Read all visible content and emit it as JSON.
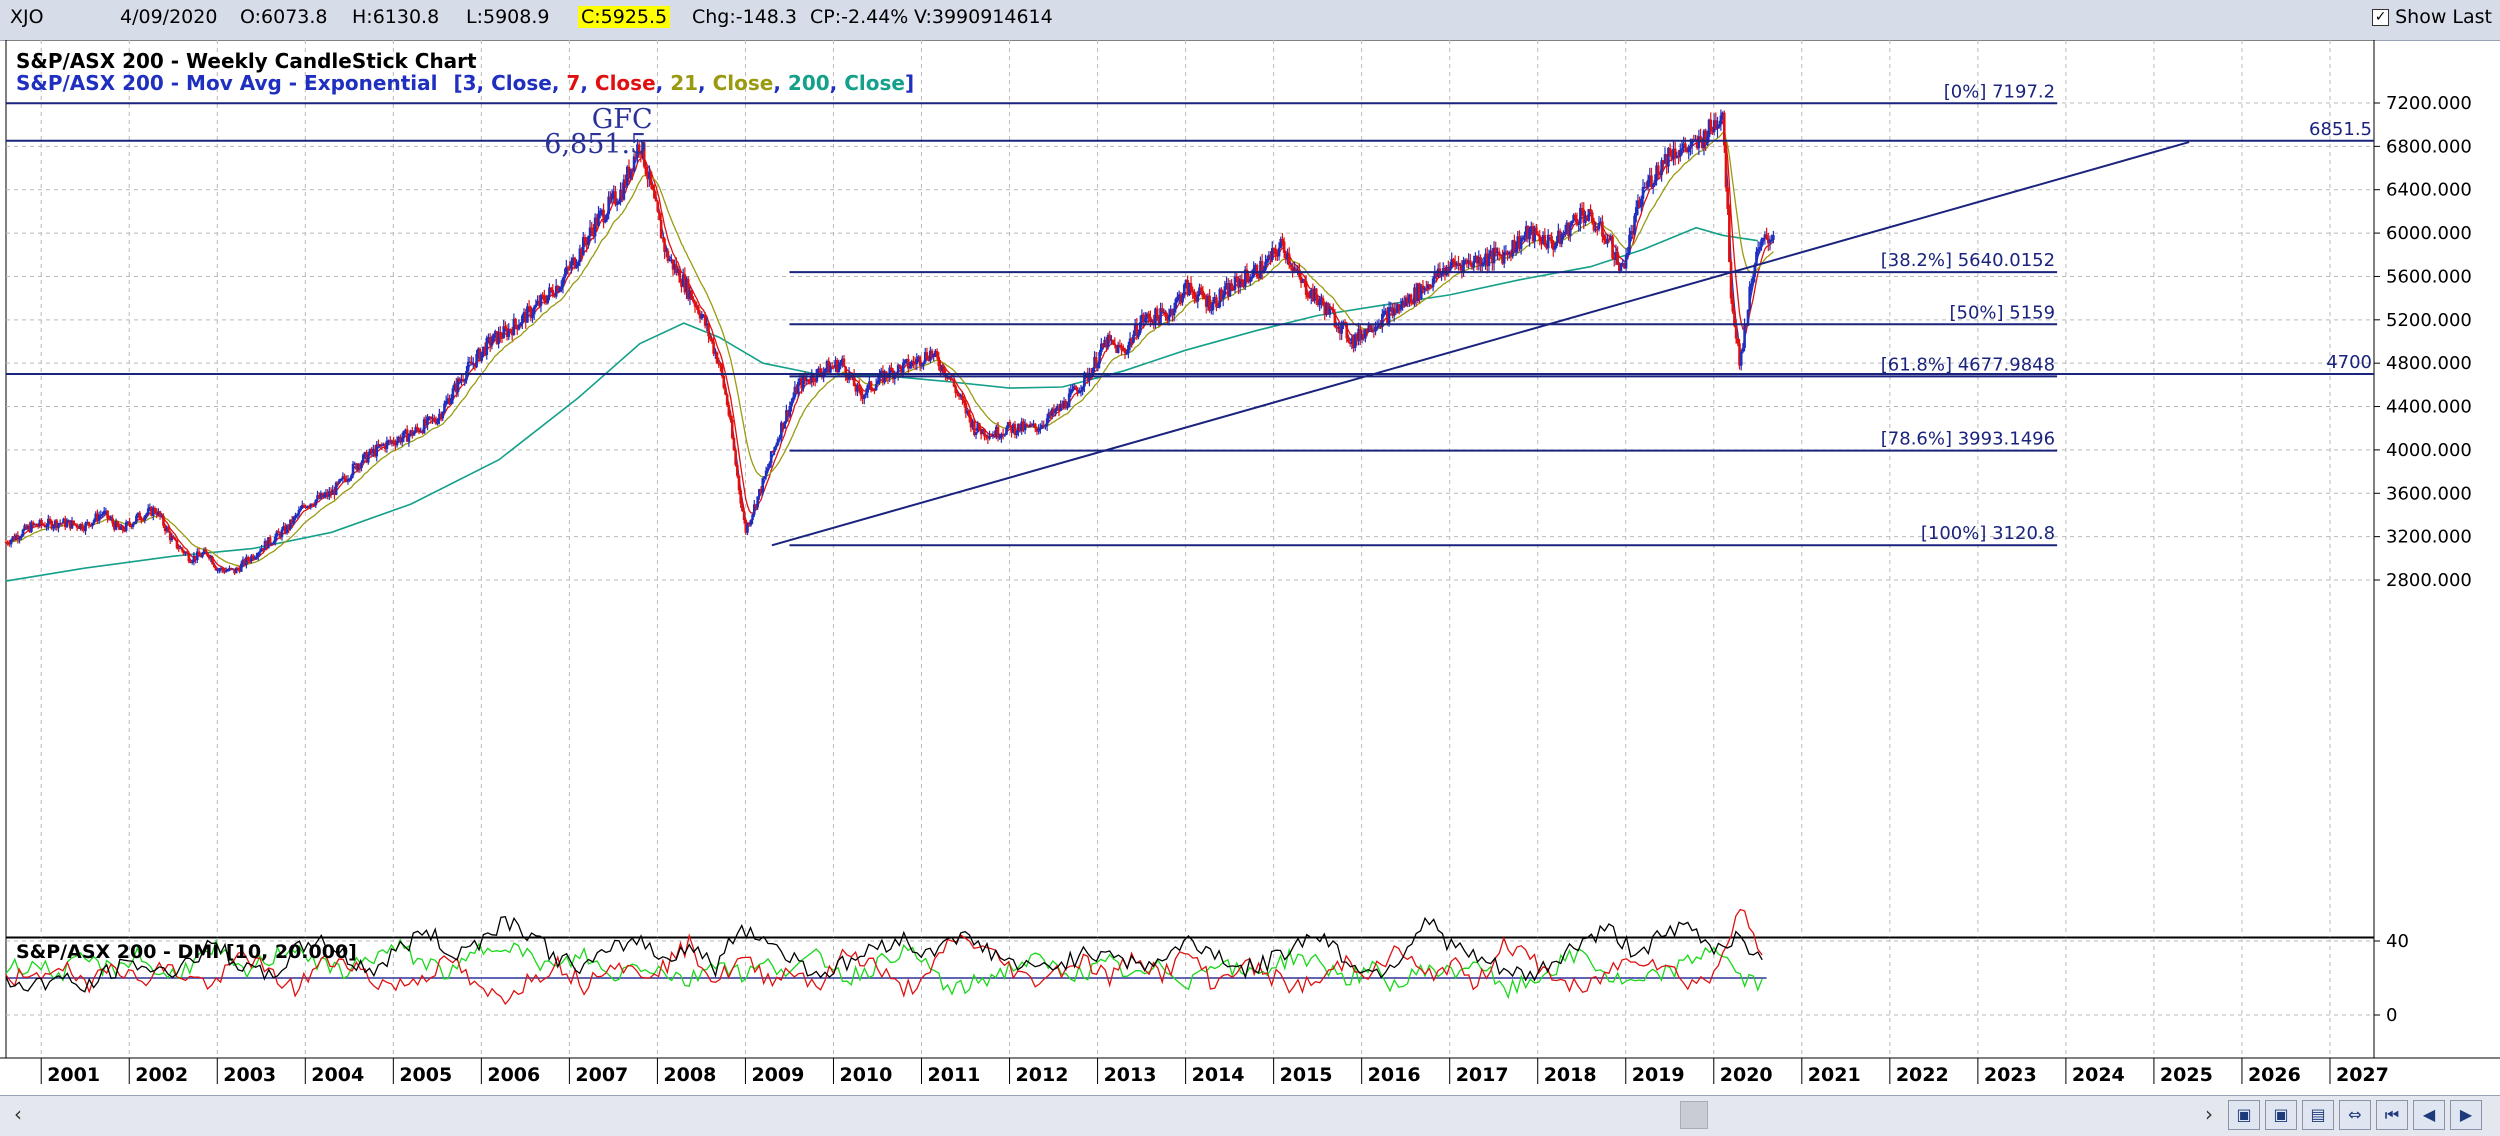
{
  "toolbar": {
    "symbol": "XJO",
    "date": "4/09/2020",
    "open": "O:6073.8",
    "high": "H:6130.8",
    "low": "L:5908.9",
    "close": "C:5925.5",
    "change": "Chg:-148.3",
    "change_pct": "CP:-2.44%",
    "volume": "V:3990914614",
    "show_last_label": "Show Last",
    "show_last_checked": true
  },
  "colors": {
    "fib_line": "#1a237e",
    "ema3": "#1f2fbf",
    "ema7": "#e01010",
    "ema21": "#9a9a10",
    "ema200": "#14a08a",
    "candle_up": "#1f2fbf",
    "candle_down": "#e01010",
    "dmi_plus": "#18d818",
    "dmi_minus": "#e01010",
    "adx": "#000000"
  },
  "chart_data": [
    {
      "type": "line",
      "title": "S&P/ASX 200 - Weekly CandleStick Chart",
      "subtitle_prefix": "S&P/ASX 200 - Mov Avg - Exponential",
      "ma_legend": [
        {
          "period": "3",
          "field": "Close",
          "color": "#1f2fbf"
        },
        {
          "period": "7",
          "field": "Close",
          "color": "#e01010"
        },
        {
          "period": "21",
          "field": "Close",
          "color": "#9a9a10"
        },
        {
          "period": "200",
          "field": "Close",
          "color": "#14a08a"
        }
      ],
      "x_ticks": [
        "2001",
        "2002",
        "2003",
        "2004",
        "2005",
        "2006",
        "2007",
        "2008",
        "2009",
        "2010",
        "2011",
        "2012",
        "2013",
        "2014",
        "2015",
        "2016",
        "2017",
        "2018",
        "2019",
        "2020",
        "2021",
        "2022",
        "2023",
        "2024",
        "2025",
        "2026",
        "2027"
      ],
      "y_ticks": [
        "7200.000",
        "6800.000",
        "6400.000",
        "6000.000",
        "5600.000",
        "5200.000",
        "4800.000",
        "4400.000",
        "4000.000",
        "3600.000",
        "3200.000",
        "2800.000"
      ],
      "ylim": [
        2720,
        7440
      ],
      "xlim": [
        2000.6,
        2027.5
      ],
      "price": {
        "x": [
          2000.6,
          2000.9,
          2001.2,
          2001.5,
          2001.7,
          2001.9,
          2002.1,
          2002.3,
          2002.5,
          2002.7,
          2002.9,
          2003.0,
          2003.2,
          2003.5,
          2003.8,
          2004.0,
          2004.3,
          2004.6,
          2004.9,
          2005.2,
          2005.5,
          2005.8,
          2006.1,
          2006.3,
          2006.6,
          2006.9,
          2007.1,
          2007.3,
          2007.5,
          2007.6,
          2007.8,
          2007.9,
          2008.1,
          2008.3,
          2008.5,
          2008.7,
          2008.8,
          2008.9,
          2009.0,
          2009.2,
          2009.4,
          2009.6,
          2009.9,
          2010.1,
          2010.3,
          2010.6,
          2010.9,
          2011.1,
          2011.3,
          2011.6,
          2011.8,
          2012.0,
          2012.3,
          2012.6,
          2012.9,
          2013.1,
          2013.3,
          2013.5,
          2013.8,
          2014.0,
          2014.3,
          2014.6,
          2014.9,
          2015.1,
          2015.3,
          2015.6,
          2015.9,
          2016.1,
          2016.4,
          2016.7,
          2017.0,
          2017.3,
          2017.6,
          2017.9,
          2018.2,
          2018.5,
          2018.8,
          2018.95,
          2019.2,
          2019.5,
          2019.8,
          2020.0,
          2020.1,
          2020.2,
          2020.3,
          2020.45,
          2020.55,
          2020.68
        ],
        "y": [
          3150,
          3300,
          3330,
          3300,
          3420,
          3250,
          3380,
          3450,
          3150,
          3000,
          3050,
          2900,
          2880,
          3100,
          3280,
          3500,
          3600,
          3880,
          4050,
          4150,
          4300,
          4700,
          5000,
          5100,
          5300,
          5550,
          5800,
          6100,
          6300,
          6400,
          6850,
          6500,
          5800,
          5550,
          5250,
          4800,
          4400,
          3800,
          3250,
          3700,
          4200,
          4600,
          4750,
          4800,
          4500,
          4700,
          4800,
          4900,
          4700,
          4200,
          4150,
          4200,
          4200,
          4400,
          4700,
          5000,
          4900,
          5200,
          5250,
          5500,
          5350,
          5550,
          5700,
          5900,
          5550,
          5300,
          5000,
          5150,
          5300,
          5500,
          5700,
          5750,
          5800,
          6000,
          5900,
          6200,
          5950,
          5650,
          6400,
          6750,
          6800,
          7000,
          7150,
          5400,
          4800,
          5700,
          5900,
          6000
        ]
      },
      "ema200": {
        "x": [
          2000.6,
          2001.5,
          2002.5,
          2003.4,
          2004.3,
          2005.2,
          2006.2,
          2007.1,
          2007.8,
          2008.3,
          2008.7,
          2009.2,
          2009.8,
          2010.5,
          2011.3,
          2012.0,
          2012.6,
          2013.3,
          2014.0,
          2014.8,
          2015.5,
          2016.2,
          2017.0,
          2017.8,
          2018.6,
          2019.2,
          2019.8,
          2020.1,
          2020.5
        ],
        "y": [
          2790,
          2910,
          3020,
          3090,
          3240,
          3500,
          3910,
          4480,
          4980,
          5170,
          5040,
          4800,
          4700,
          4690,
          4630,
          4570,
          4580,
          4730,
          4920,
          5100,
          5240,
          5330,
          5430,
          5570,
          5690,
          5850,
          6050,
          5980,
          5930
        ]
      },
      "fib_levels": [
        {
          "label": "[0%] 7197.2",
          "value": 7197.2,
          "x_start": 2000.6,
          "x_end": 2023.9
        },
        {
          "label": "[38.2%] 5640.0152",
          "value": 5640.0152,
          "x_start": 2009.5,
          "x_end": 2023.9
        },
        {
          "label": "[50%] 5159",
          "value": 5159,
          "x_start": 2009.5,
          "x_end": 2023.9
        },
        {
          "label": "[61.8%] 4677.9848",
          "value": 4677.9848,
          "x_start": 2009.5,
          "x_end": 2023.9
        },
        {
          "label": "[78.6%] 3993.1496",
          "value": 3993.1496,
          "x_start": 2009.5,
          "x_end": 2023.9
        },
        {
          "label": "[100%] 3120.8",
          "value": 3120.8,
          "x_start": 2009.5,
          "x_end": 2023.9
        }
      ],
      "horizontal_lines": [
        {
          "label": "6851.5",
          "value": 6851.5
        },
        {
          "label": "4700",
          "value": 4700
        }
      ],
      "trendline": {
        "x": [
          2009.3,
          2025.4
        ],
        "y": [
          3120,
          6840
        ]
      },
      "annotations": [
        {
          "text": "GFC",
          "x": 2007.6,
          "y": 6970
        },
        {
          "text": "6,851.5",
          "x": 2007.3,
          "y": 6740
        }
      ]
    },
    {
      "type": "line",
      "title": "S&P/ASX 200 - DMI [10, 20.000]",
      "y_ticks": [
        "40",
        "0"
      ],
      "ylim": [
        -5,
        65
      ],
      "series": [
        {
          "key": "plus_di",
          "color": "#18d818",
          "values": [
            25,
            28,
            22,
            30,
            24,
            33,
            20,
            27,
            35,
            22,
            30,
            38,
            26,
            24,
            32,
            36,
            28,
            22,
            35,
            40,
            30,
            25,
            33,
            20,
            28,
            24,
            18,
            30,
            22,
            27,
            25,
            32,
            20,
            26,
            35,
            28,
            12,
            18,
            24,
            30,
            25,
            22,
            28,
            20,
            26,
            18,
            30,
            22,
            25,
            32,
            28,
            20,
            24,
            15,
            26,
            22,
            30,
            12,
            18,
            26,
            34,
            20,
            16,
            22,
            28,
            38,
            20,
            15
          ]
        },
        {
          "key": "minus_di",
          "color": "#e01010",
          "values": [
            22,
            18,
            28,
            15,
            30,
            18,
            26,
            20,
            16,
            34,
            22,
            14,
            28,
            30,
            18,
            16,
            22,
            30,
            12,
            10,
            20,
            28,
            16,
            30,
            22,
            26,
            38,
            18,
            30,
            20,
            24,
            16,
            34,
            28,
            14,
            18,
            42,
            38,
            28,
            18,
            24,
            30,
            20,
            32,
            22,
            34,
            16,
            28,
            22,
            15,
            18,
            30,
            22,
            36,
            20,
            28,
            16,
            40,
            30,
            20,
            12,
            24,
            32,
            28,
            18,
            20,
            62,
            22
          ]
        },
        {
          "key": "adx",
          "color": "#000000",
          "values": [
            18,
            16,
            20,
            14,
            24,
            28,
            22,
            30,
            38,
            26,
            20,
            34,
            42,
            30,
            24,
            36,
            46,
            32,
            40,
            52,
            44,
            30,
            26,
            34,
            42,
            30,
            38,
            26,
            48,
            40,
            30,
            22,
            28,
            36,
            42,
            32,
            44,
            38,
            30,
            24,
            28,
            32,
            36,
            26,
            30,
            40,
            34,
            24,
            28,
            38,
            44,
            30,
            22,
            30,
            52,
            38,
            30,
            24,
            20,
            30,
            40,
            46,
            34,
            42,
            48,
            36,
            44,
            24
          ]
        }
      ]
    }
  ]
}
